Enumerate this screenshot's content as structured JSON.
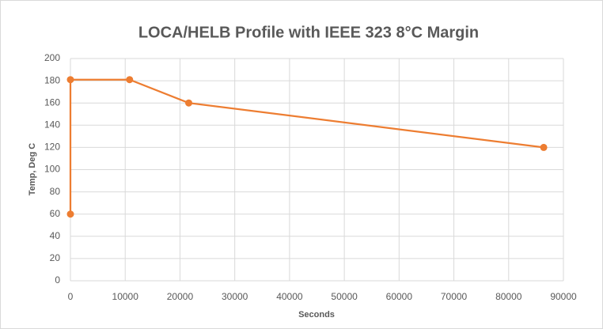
{
  "chart_data": {
    "type": "scatter-line",
    "title": "LOCA/HELB Profile with IEEE 323 8°C Margin",
    "x_label": "Seconds",
    "y_label": "Temp, Deg C",
    "series": [
      {
        "name": "Temp",
        "color": "#ed7d31",
        "x": [
          0,
          0,
          10800,
          21600,
          86400
        ],
        "values": [
          60,
          181,
          181,
          160,
          120
        ]
      }
    ],
    "xlim": [
      0,
      90000
    ],
    "xticks": [
      0,
      10000,
      20000,
      30000,
      40000,
      50000,
      60000,
      70000,
      80000,
      90000
    ],
    "ylim": [
      0,
      200
    ],
    "yticks": [
      0,
      20,
      40,
      60,
      80,
      100,
      120,
      140,
      160,
      180,
      200
    ],
    "grid": true
  }
}
